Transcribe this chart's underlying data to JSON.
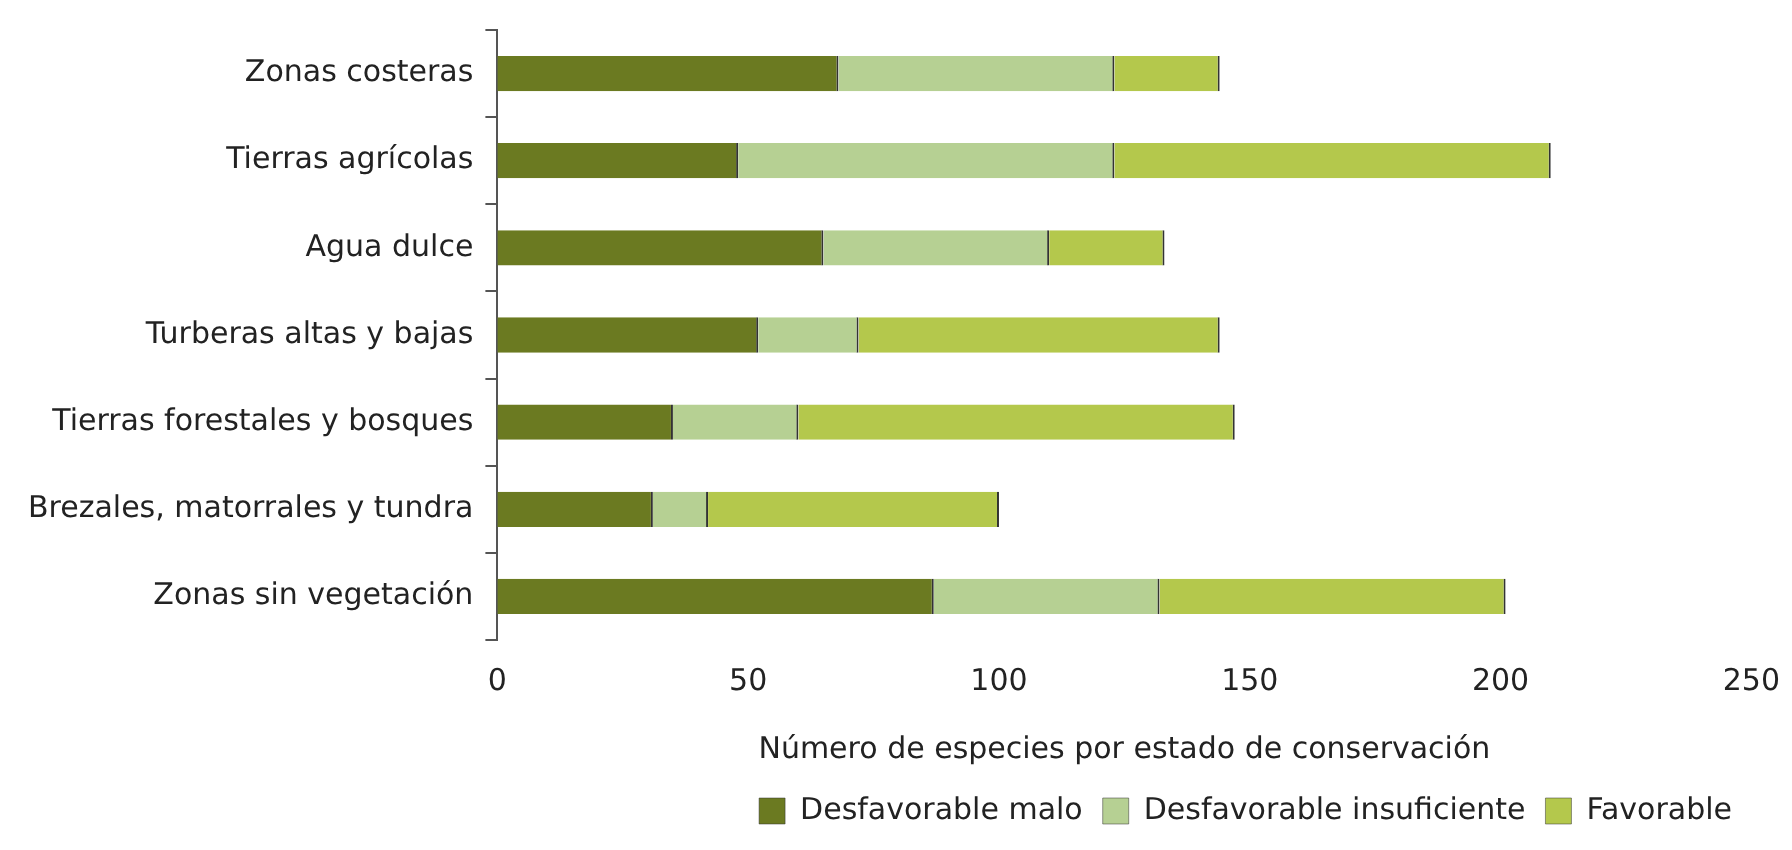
{
  "chart_data": {
    "type": "bar",
    "orientation": "horizontal",
    "stacked": true,
    "xlabel": "Número de especies por estado de conservación",
    "categories": [
      "Zonas costeras",
      "Tierras agrícolas",
      "Agua dulce",
      "Turberas altas y bajas",
      "Tierras forestales y bosques",
      "Brezales, matorrales y tundra",
      "Zonas sin vegetación"
    ],
    "series": [
      {
        "name": "Desfavorable malo",
        "color": "#6b7a21",
        "values": [
          68,
          48,
          65,
          52,
          35,
          31,
          87
        ]
      },
      {
        "name": "Desfavorable insuficiente",
        "color": "#b6d093",
        "values": [
          55,
          75,
          45,
          20,
          25,
          11,
          45
        ]
      },
      {
        "name": "Favorable",
        "color": "#b4c84c",
        "values": [
          21,
          87,
          23,
          72,
          87,
          58,
          69
        ]
      }
    ],
    "xlim": [
      0,
      250
    ],
    "xticks": [
      0,
      50,
      100,
      150,
      200,
      250
    ],
    "grid": false,
    "legend": "bottom right"
  }
}
